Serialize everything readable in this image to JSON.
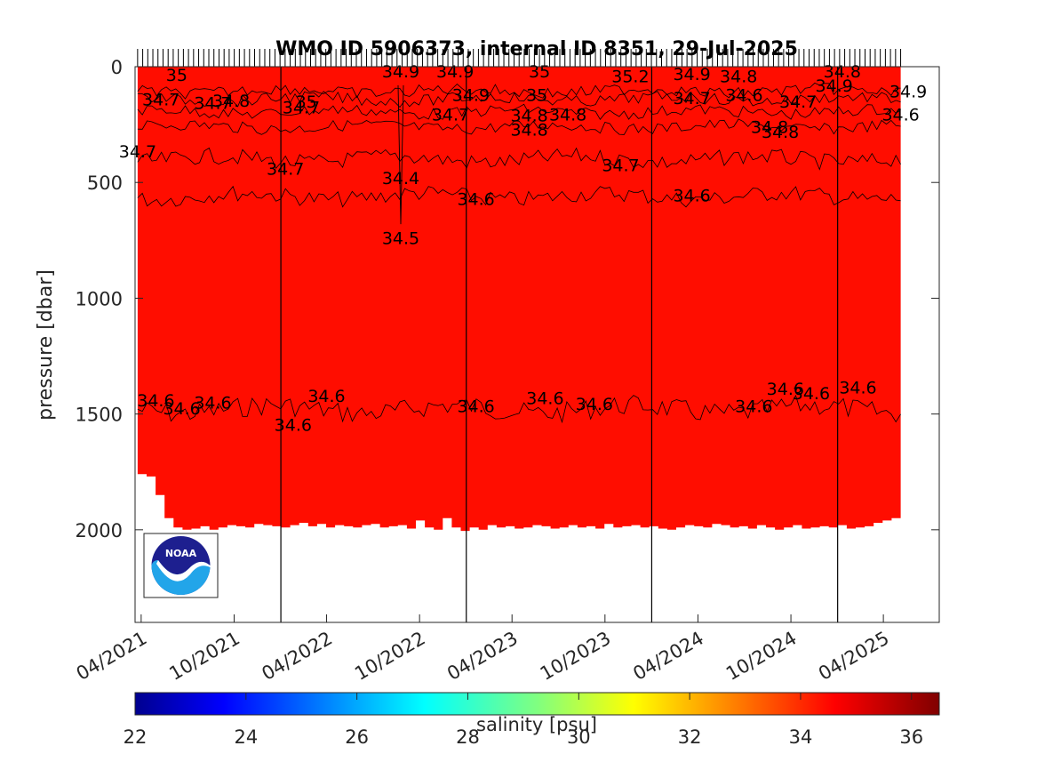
{
  "chart_data": {
    "type": "heatmap",
    "title": "WMO ID 5906373, internal ID 8351, 29-Jul-2025",
    "ylabel": "pressure [dbar]",
    "y_reversed": true,
    "ylim": [
      2400,
      0
    ],
    "y_ticks": [
      0,
      500,
      1000,
      1500,
      2000
    ],
    "x_range": [
      "2021-03-20",
      "2025-07-20"
    ],
    "x_ticks": [
      {
        "date": "2021-04-01",
        "label": "04/2021"
      },
      {
        "date": "2021-10-01",
        "label": "10/2021"
      },
      {
        "date": "2022-04-01",
        "label": "04/2022"
      },
      {
        "date": "2022-10-01",
        "label": "10/2022"
      },
      {
        "date": "2023-04-01",
        "label": "04/2023"
      },
      {
        "date": "2023-10-01",
        "label": "10/2023"
      },
      {
        "date": "2024-04-01",
        "label": "04/2024"
      },
      {
        "date": "2024-10-01",
        "label": "10/2024"
      },
      {
        "date": "2025-04-01",
        "label": "04/2025"
      }
    ],
    "data_span": [
      "2021-03-25",
      "2025-05-05"
    ],
    "fill_color": "#ff0d00",
    "year_lines": [
      "2022-01-01",
      "2023-01-01",
      "2024-01-01",
      "2025-01-01"
    ],
    "profile_bottom_dbar": [
      1760,
      1770,
      1850,
      1950,
      1990,
      2000,
      1995,
      1985,
      2000,
      1990,
      1980,
      1985,
      1990,
      1975,
      1980,
      1985,
      1990,
      1980,
      1970,
      1985,
      1975,
      1990,
      1980,
      1985,
      1990,
      1980,
      1975,
      1990,
      1985,
      1980,
      1995,
      1960,
      1990,
      2000,
      1950,
      1990,
      2005,
      1990,
      2000,
      1980,
      1990,
      1985,
      1995,
      1990,
      1980,
      1985,
      1995,
      1990,
      1980,
      1990,
      1985,
      1995,
      1975,
      1990,
      1985,
      1980,
      1990,
      1985,
      1995,
      2000,
      1990,
      1980,
      1985,
      1990,
      1975,
      1980,
      1990,
      1985,
      1995,
      1980,
      1990,
      2000,
      1990,
      1980,
      1995,
      1990,
      1985,
      1990,
      1980,
      1995,
      1990,
      1985,
      1970,
      1960,
      1950
    ],
    "contours": [
      {
        "level": 34.6,
        "mean_depth_dbar": 1480
      },
      {
        "level": 34.6,
        "mean_depth_dbar": 560
      },
      {
        "level": 34.7,
        "mean_depth_dbar": 400
      },
      {
        "level": 34.8,
        "mean_depth_dbar": 260
      },
      {
        "level": 34.8,
        "mean_depth_dbar": 195
      },
      {
        "level": 34.9,
        "mean_depth_dbar": 140
      },
      {
        "level": 35,
        "mean_depth_dbar": 105
      }
    ],
    "contour_labels": [
      {
        "text": "34.7",
        "date": "2021-05-10",
        "p": 140
      },
      {
        "text": "34.7",
        "date": "2021-08-20",
        "p": 155
      },
      {
        "text": "34.8",
        "date": "2021-09-25",
        "p": 145
      },
      {
        "text": "35",
        "date": "2021-06-10",
        "p": 35
      },
      {
        "text": "34.7",
        "date": "2022-02-10",
        "p": 175
      },
      {
        "text": "35",
        "date": "2022-02-20",
        "p": 150
      },
      {
        "text": "34.9",
        "date": "2022-08-25",
        "p": 20
      },
      {
        "text": "34.9",
        "date": "2022-12-10",
        "p": 20
      },
      {
        "text": "34.7",
        "date": "2022-12-01",
        "p": 205
      },
      {
        "text": "34.9",
        "date": "2023-01-10",
        "p": 120
      },
      {
        "text": "35",
        "date": "2023-05-25",
        "p": 20
      },
      {
        "text": "35",
        "date": "2023-05-20",
        "p": 120
      },
      {
        "text": "34.8",
        "date": "2023-05-05",
        "p": 210
      },
      {
        "text": "34.8",
        "date": "2023-05-05",
        "p": 270
      },
      {
        "text": "34.8",
        "date": "2023-07-20",
        "p": 205
      },
      {
        "text": "35.2",
        "date": "2023-11-20",
        "p": 40
      },
      {
        "text": "34.9",
        "date": "2024-03-20",
        "p": 30
      },
      {
        "text": "34.7",
        "date": "2024-03-20",
        "p": 135
      },
      {
        "text": "34.8",
        "date": "2024-06-20",
        "p": 40
      },
      {
        "text": "34.6",
        "date": "2024-07-01",
        "p": 120
      },
      {
        "text": "34.7",
        "date": "2024-10-15",
        "p": 150
      },
      {
        "text": "34.8",
        "date": "2024-08-20",
        "p": 260
      },
      {
        "text": "34.8",
        "date": "2024-09-10",
        "p": 280
      },
      {
        "text": "34.8",
        "date": "2025-01-10",
        "p": 20
      },
      {
        "text": "34.9",
        "date": "2024-12-25",
        "p": 80
      },
      {
        "text": "34.9",
        "date": "2025-05-20",
        "p": 105
      },
      {
        "text": "34.6",
        "date": "2025-05-05",
        "p": 205
      },
      {
        "text": "34.7",
        "date": "2021-03-25",
        "p": 365
      },
      {
        "text": "34.7",
        "date": "2022-01-10",
        "p": 440
      },
      {
        "text": "34.7",
        "date": "2023-11-01",
        "p": 425
      },
      {
        "text": "34.4",
        "date": "2022-08-25",
        "p": 480
      },
      {
        "text": "34.5",
        "date": "2022-08-25",
        "p": 740
      },
      {
        "text": "34.6",
        "date": "2023-01-20",
        "p": 570
      },
      {
        "text": "34.6",
        "date": "2024-03-20",
        "p": 555
      },
      {
        "text": "34.6",
        "date": "2021-04-30",
        "p": 1440
      },
      {
        "text": "34.6",
        "date": "2021-06-20",
        "p": 1475
      },
      {
        "text": "34.6",
        "date": "2021-08-20",
        "p": 1450
      },
      {
        "text": "34.6",
        "date": "2022-01-25",
        "p": 1545
      },
      {
        "text": "34.6",
        "date": "2022-04-01",
        "p": 1420
      },
      {
        "text": "34.6",
        "date": "2023-01-20",
        "p": 1465
      },
      {
        "text": "34.6",
        "date": "2023-06-05",
        "p": 1430
      },
      {
        "text": "34.6",
        "date": "2023-09-10",
        "p": 1455
      },
      {
        "text": "34.6",
        "date": "2024-07-20",
        "p": 1465
      },
      {
        "text": "34.6",
        "date": "2024-09-20",
        "p": 1390
      },
      {
        "text": "34.6",
        "date": "2024-11-10",
        "p": 1410
      },
      {
        "text": "34.6",
        "date": "2025-02-10",
        "p": 1385
      }
    ],
    "colorbar": {
      "label": "salinity [psu]",
      "ticks": [
        22,
        24,
        26,
        28,
        30,
        32,
        34,
        36
      ],
      "range": [
        22,
        36.5
      ],
      "colormap": "jet"
    }
  },
  "logo": {
    "text": "NOAA",
    "primary_color": "#1d1f8f",
    "secondary_color": "#22a5e9"
  }
}
